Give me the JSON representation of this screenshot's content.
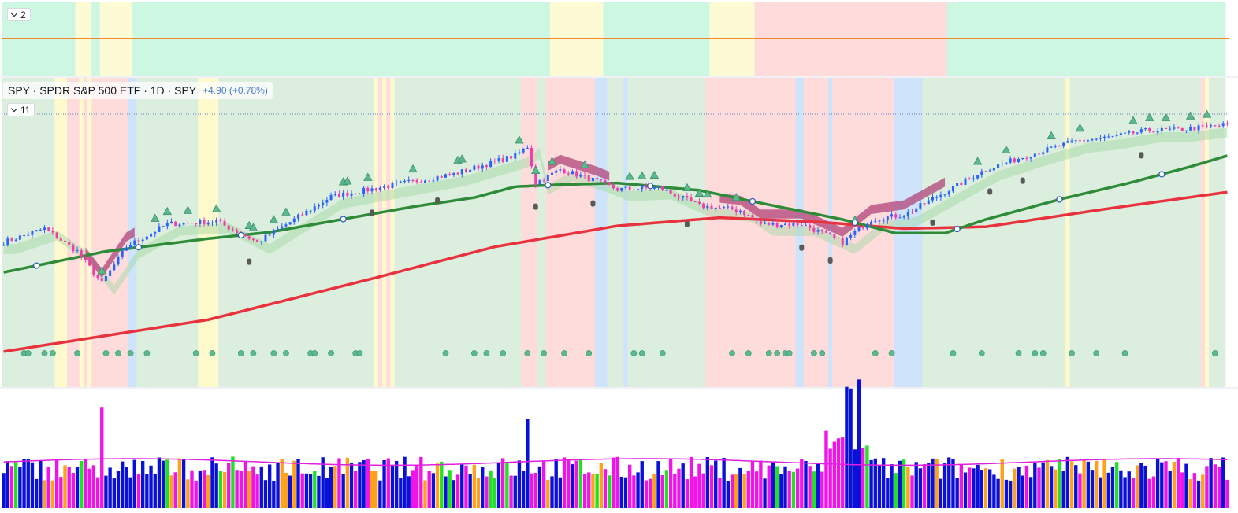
{
  "header": {
    "symbol_title": "SPY · SPDR S&P 500 ETF · 1D · SPY",
    "change": "+4.90 (+0.78%)",
    "pane_top_collapse_count": "2",
    "pane_main_collapse_count": "11"
  },
  "colors": {
    "bullish_candle": "#2962ff",
    "bearish_candle": "#f23da8",
    "sma_mid": "#2e8b38",
    "sma_long": "#e8333f",
    "top_pane_line": "#f0882a",
    "volume_avg_line": "#e020e0",
    "bg_green": "#dceedd",
    "bg_red": "#ffdcdc",
    "bg_blue": "#cfe3fb",
    "bg_yellow": "#fffacd",
    "top_bg_mint": "#cdf7e2",
    "top_bg_yellow": "#fdfbd6",
    "top_bg_red": "#ffdbdb",
    "volume_blue": "#0a10d8",
    "volume_magenta": "#f014e8",
    "volume_orange": "#ffa11a",
    "volume_green": "#22e022"
  },
  "chart_data": {
    "type": "candlestick",
    "bars": 300,
    "price_path": [
      [
        0,
        545
      ],
      [
        10,
        560
      ],
      [
        18,
        535
      ],
      [
        24,
        500
      ],
      [
        30,
        540
      ],
      [
        40,
        565
      ],
      [
        52,
        568
      ],
      [
        62,
        545
      ],
      [
        80,
        595
      ],
      [
        92,
        605
      ],
      [
        110,
        620
      ],
      [
        125,
        640
      ],
      [
        128,
        650
      ],
      [
        130,
        610
      ],
      [
        136,
        625
      ],
      [
        145,
        612
      ],
      [
        150,
        603
      ],
      [
        160,
        605
      ],
      [
        170,
        585
      ],
      [
        180,
        580
      ],
      [
        185,
        565
      ],
      [
        195,
        565
      ],
      [
        205,
        545
      ],
      [
        212,
        570
      ],
      [
        220,
        575
      ],
      [
        232,
        605
      ],
      [
        240,
        625
      ],
      [
        250,
        640
      ],
      [
        262,
        656
      ],
      [
        270,
        660
      ],
      [
        280,
        668
      ],
      [
        286,
        668
      ],
      [
        299,
        674
      ]
    ],
    "sma_mid_path": [
      [
        0,
        512
      ],
      [
        25,
        535
      ],
      [
        50,
        549
      ],
      [
        65,
        556
      ],
      [
        80,
        568
      ],
      [
        100,
        584
      ],
      [
        115,
        594
      ],
      [
        125,
        606
      ],
      [
        135,
        608
      ],
      [
        150,
        610
      ],
      [
        170,
        602
      ],
      [
        185,
        588
      ],
      [
        205,
        570
      ],
      [
        218,
        555
      ],
      [
        230,
        555
      ],
      [
        240,
        570
      ],
      [
        258,
        592
      ],
      [
        275,
        610
      ],
      [
        290,
        628
      ],
      [
        299,
        640
      ]
    ],
    "sma_long_path": [
      [
        0,
        425
      ],
      [
        50,
        460
      ],
      [
        90,
        505
      ],
      [
        120,
        540
      ],
      [
        150,
        563
      ],
      [
        175,
        572
      ],
      [
        200,
        567
      ],
      [
        220,
        560
      ],
      [
        240,
        562
      ],
      [
        270,
        582
      ],
      [
        299,
        600
      ]
    ],
    "regime_bands": [
      {
        "from": 0,
        "to": 13,
        "state": "green"
      },
      {
        "from": 13,
        "to": 16,
        "state": "yellow"
      },
      {
        "from": 16,
        "to": 19,
        "state": "red"
      },
      {
        "from": 19,
        "to": 20,
        "state": "yellow"
      },
      {
        "from": 20,
        "to": 21,
        "state": "red"
      },
      {
        "from": 21,
        "to": 22,
        "state": "yellow"
      },
      {
        "from": 22,
        "to": 31,
        "state": "red"
      },
      {
        "from": 31,
        "to": 33,
        "state": "blue"
      },
      {
        "from": 33,
        "to": 48,
        "state": "green"
      },
      {
        "from": 48,
        "to": 53,
        "state": "yellow"
      },
      {
        "from": 53,
        "to": 91,
        "state": "green"
      },
      {
        "from": 91,
        "to": 92,
        "state": "yellow"
      },
      {
        "from": 92,
        "to": 93,
        "state": "red"
      },
      {
        "from": 93,
        "to": 94,
        "state": "yellow"
      },
      {
        "from": 94,
        "to": 95,
        "state": "red"
      },
      {
        "from": 95,
        "to": 96,
        "state": "yellow"
      },
      {
        "from": 96,
        "to": 127,
        "state": "green"
      },
      {
        "from": 127,
        "to": 131,
        "state": "red"
      },
      {
        "from": 131,
        "to": 133,
        "state": "green"
      },
      {
        "from": 133,
        "to": 145,
        "state": "red"
      },
      {
        "from": 145,
        "to": 148,
        "state": "blue"
      },
      {
        "from": 148,
        "to": 152,
        "state": "green"
      },
      {
        "from": 152,
        "to": 153,
        "state": "blue"
      },
      {
        "from": 153,
        "to": 172,
        "state": "green"
      },
      {
        "from": 172,
        "to": 194,
        "state": "red"
      },
      {
        "from": 194,
        "to": 196,
        "state": "blue"
      },
      {
        "from": 196,
        "to": 202,
        "state": "red"
      },
      {
        "from": 202,
        "to": 203,
        "state": "blue"
      },
      {
        "from": 203,
        "to": 218,
        "state": "red"
      },
      {
        "from": 218,
        "to": 225,
        "state": "blue"
      },
      {
        "from": 225,
        "to": 260,
        "state": "green"
      },
      {
        "from": 260,
        "to": 261,
        "state": "yellow"
      },
      {
        "from": 261,
        "to": 293,
        "state": "green"
      },
      {
        "from": 293,
        "to": 294,
        "state": "red"
      },
      {
        "from": 294,
        "to": 295,
        "state": "yellow"
      },
      {
        "from": 295,
        "to": 299,
        "state": "green"
      }
    ],
    "top_bands": [
      {
        "from": 0,
        "to": 18,
        "state": "mint"
      },
      {
        "from": 18,
        "to": 22,
        "state": "yellow"
      },
      {
        "from": 22,
        "to": 24,
        "state": "mint"
      },
      {
        "from": 24,
        "to": 32,
        "state": "yellow"
      },
      {
        "from": 32,
        "to": 42,
        "state": "mint"
      },
      {
        "from": 42,
        "to": 46,
        "state": "mint"
      },
      {
        "from": 46,
        "to": 60,
        "state": "mint"
      },
      {
        "from": 60,
        "to": 134,
        "state": "mint"
      },
      {
        "from": 134,
        "to": 147,
        "state": "yellow"
      },
      {
        "from": 147,
        "to": 173,
        "state": "mint"
      },
      {
        "from": 173,
        "to": 184,
        "state": "yellow"
      },
      {
        "from": 184,
        "to": 224,
        "state": "red"
      },
      {
        "from": 224,
        "to": 231,
        "state": "red"
      },
      {
        "from": 231,
        "to": 299,
        "state": "mint"
      }
    ],
    "buy_triangles": [
      24,
      37,
      40,
      45,
      52,
      60,
      61,
      66,
      69,
      83,
      84,
      89,
      100,
      111,
      112,
      126,
      130,
      134,
      142,
      153,
      156,
      159,
      167,
      170,
      172,
      179,
      208,
      238,
      245,
      256,
      263,
      276,
      280,
      284,
      290,
      294
    ],
    "exit_markers": [
      60,
      90,
      106,
      130,
      144,
      167,
      195,
      202,
      227,
      241,
      249,
      278
    ],
    "crossover_circles": [
      8,
      33,
      58,
      83,
      133,
      158,
      183,
      208,
      233,
      258,
      283
    ],
    "volume_avg_level": 0.42,
    "volume_spike_bars": [
      24,
      128,
      207,
      209,
      206
    ],
    "volume_color_regimes": [
      "blue",
      "magenta",
      "orange",
      "green"
    ]
  }
}
